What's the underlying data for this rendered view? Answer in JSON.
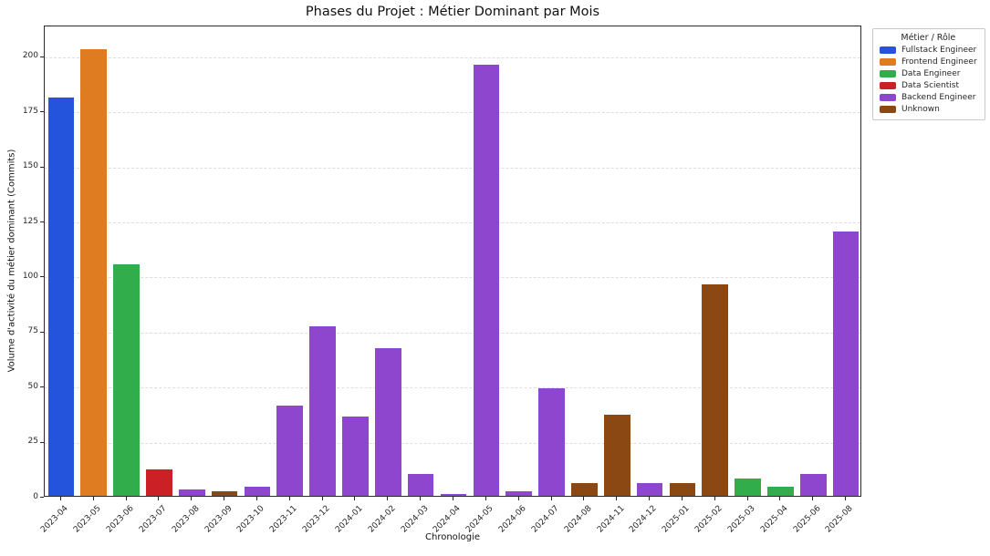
{
  "chart_data": {
    "type": "bar",
    "title": "Phases du Projet : Métier Dominant par Mois",
    "xlabel": "Chronologie",
    "ylabel": "Volume d'activité du métier dominant (Commits)",
    "ylim": [
      0,
      214
    ],
    "yticks": [
      0,
      25,
      50,
      75,
      100,
      125,
      150,
      175,
      200
    ],
    "grid": "horizontal dashed",
    "legend": {
      "title": "Métier / Rôle",
      "position": "outside right top",
      "entries": [
        {
          "label": "Fullstack Engineer",
          "color": "#2453dc"
        },
        {
          "label": "Frontend Engineer",
          "color": "#df7c21"
        },
        {
          "label": "Data Engineer",
          "color": "#31ad4c"
        },
        {
          "label": "Data Scientist",
          "color": "#cc2027"
        },
        {
          "label": "Backend Engineer",
          "color": "#8f46cf"
        },
        {
          "label": "Unknown",
          "color": "#8b4813"
        }
      ]
    },
    "series_colors": {
      "Fullstack Engineer": "#2453dc",
      "Frontend Engineer": "#df7c21",
      "Data Engineer": "#31ad4c",
      "Data Scientist": "#cc2027",
      "Backend Engineer": "#8f46cf",
      "Unknown": "#8b4813"
    },
    "bars": [
      {
        "category": "2023-04",
        "value": 181,
        "series": "Fullstack Engineer"
      },
      {
        "category": "2023-05",
        "value": 203,
        "series": "Frontend Engineer"
      },
      {
        "category": "2023-06",
        "value": 105,
        "series": "Data Engineer"
      },
      {
        "category": "2023-07",
        "value": 12,
        "series": "Data Scientist"
      },
      {
        "category": "2023-08",
        "value": 3,
        "series": "Backend Engineer"
      },
      {
        "category": "2023-09",
        "value": 2,
        "series": "Unknown"
      },
      {
        "category": "2023-10",
        "value": 4,
        "series": "Backend Engineer"
      },
      {
        "category": "2023-11",
        "value": 41,
        "series": "Backend Engineer"
      },
      {
        "category": "2023-12",
        "value": 77,
        "series": "Backend Engineer"
      },
      {
        "category": "2024-01",
        "value": 36,
        "series": "Backend Engineer"
      },
      {
        "category": "2024-02",
        "value": 67,
        "series": "Backend Engineer"
      },
      {
        "category": "2024-03",
        "value": 10,
        "series": "Backend Engineer"
      },
      {
        "category": "2024-04",
        "value": 1,
        "series": "Backend Engineer"
      },
      {
        "category": "2024-05",
        "value": 196,
        "series": "Backend Engineer"
      },
      {
        "category": "2024-06",
        "value": 2,
        "series": "Backend Engineer"
      },
      {
        "category": "2024-07",
        "value": 49,
        "series": "Backend Engineer"
      },
      {
        "category": "2024-08",
        "value": 6,
        "series": "Unknown"
      },
      {
        "category": "2024-11",
        "value": 37,
        "series": "Unknown"
      },
      {
        "category": "2024-12",
        "value": 6,
        "series": "Backend Engineer"
      },
      {
        "category": "2025-01",
        "value": 6,
        "series": "Unknown"
      },
      {
        "category": "2025-02",
        "value": 96,
        "series": "Unknown"
      },
      {
        "category": "2025-03",
        "value": 8,
        "series": "Data Engineer"
      },
      {
        "category": "2025-04",
        "value": 4,
        "series": "Data Engineer"
      },
      {
        "category": "2025-06",
        "value": 10,
        "series": "Backend Engineer"
      },
      {
        "category": "2025-08",
        "value": 120,
        "series": "Backend Engineer"
      }
    ]
  }
}
